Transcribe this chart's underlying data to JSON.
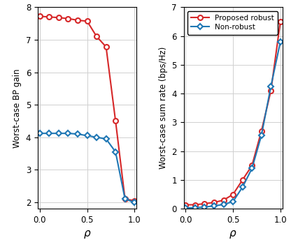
{
  "rho": [
    0,
    0.1,
    0.2,
    0.3,
    0.4,
    0.5,
    0.6,
    0.7,
    0.8,
    0.9,
    1.0
  ],
  "left_robust": [
    7.72,
    7.7,
    7.68,
    7.65,
    7.6,
    7.57,
    7.1,
    6.78,
    4.5,
    2.1,
    2.05
  ],
  "left_nonrobust": [
    4.12,
    4.12,
    4.12,
    4.12,
    4.1,
    4.05,
    4.0,
    3.95,
    3.55,
    2.1,
    2.0
  ],
  "right_robust": [
    0.14,
    0.14,
    0.18,
    0.22,
    0.3,
    0.5,
    1.0,
    1.5,
    2.7,
    4.1,
    6.5
  ],
  "right_nonrobust": [
    0.03,
    0.04,
    0.06,
    0.1,
    0.15,
    0.25,
    0.75,
    1.4,
    2.55,
    4.25,
    5.8
  ],
  "color_robust": "#d62728",
  "color_nonrobust": "#1f77b4",
  "left_ylabel": "Worst-case BP gain",
  "left_ylim": [
    1.8,
    8.0
  ],
  "left_yticks": [
    2,
    3,
    4,
    5,
    6,
    7,
    8
  ],
  "right_ylabel": "Worst-case sum rate (bps/Hz)",
  "right_ylim": [
    0,
    7
  ],
  "right_yticks": [
    0,
    1,
    2,
    3,
    4,
    5,
    6,
    7
  ],
  "xlabel": "$\\rho$",
  "xticks": [
    0,
    0.5,
    1.0
  ],
  "legend_proposed": "Proposed robust",
  "legend_nonrobust": "Non-robust"
}
